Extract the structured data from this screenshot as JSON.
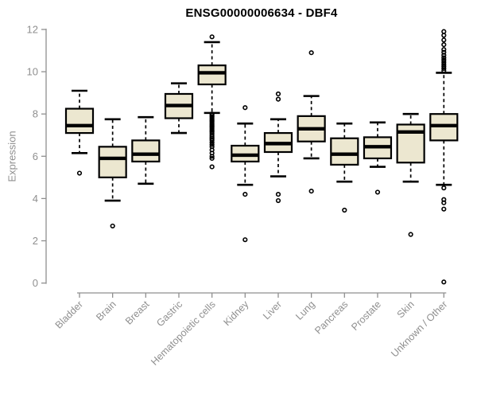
{
  "title": "ENSG00000006634 - DBF4",
  "colors": {
    "background": "#ffffff",
    "box_fill": "#ece7d0",
    "box_stroke": "#000000",
    "median": "#000000",
    "whisker": "#000000",
    "outlier": "#000000",
    "axis": "#8f8f8f",
    "tick_text": "#8f8f8f",
    "title_text": "#000000"
  },
  "chart_data": {
    "type": "box",
    "title": "ENSG00000006634 - DBF4",
    "ylabel": "Expression",
    "xlabel": "",
    "ylim": [
      0,
      12
    ],
    "yticks": [
      0,
      2,
      4,
      6,
      8,
      10,
      12
    ],
    "grid": false,
    "legend": "none",
    "whisker_style": "dashed",
    "x_label_rotation_deg": 45,
    "categories": [
      "Bladder",
      "Brain",
      "Breast",
      "Gastric",
      "Hematopoietic cells",
      "Kidney",
      "Liver",
      "Lung",
      "Pancreas",
      "Prostate",
      "Skin",
      "Unknown / Other"
    ],
    "boxes": [
      {
        "name": "Bladder",
        "low": 6.15,
        "q1": 7.1,
        "median": 7.45,
        "q3": 8.25,
        "high": 9.1,
        "outliers": [
          5.2
        ]
      },
      {
        "name": "Brain",
        "low": 3.9,
        "q1": 5.0,
        "median": 5.9,
        "q3": 6.45,
        "high": 7.75,
        "outliers": [
          2.7
        ]
      },
      {
        "name": "Breast",
        "low": 4.7,
        "q1": 5.75,
        "median": 6.1,
        "q3": 6.75,
        "high": 7.85,
        "outliers": []
      },
      {
        "name": "Gastric",
        "low": 7.1,
        "q1": 7.8,
        "median": 8.4,
        "q3": 8.95,
        "high": 9.45,
        "outliers": []
      },
      {
        "name": "Hematopoietic cells",
        "low": 8.05,
        "q1": 9.4,
        "median": 9.95,
        "q3": 10.3,
        "high": 11.4,
        "outliers": [
          11.65,
          8.0,
          7.93,
          7.86,
          7.79,
          7.72,
          7.65,
          7.58,
          7.51,
          7.44,
          7.37,
          7.3,
          7.23,
          7.16,
          7.09,
          7.0,
          6.92,
          6.84,
          6.76,
          6.65,
          6.55,
          6.45,
          6.3,
          6.15,
          6.0,
          5.9,
          5.5
        ]
      },
      {
        "name": "Kidney",
        "low": 4.65,
        "q1": 5.75,
        "median": 6.05,
        "q3": 6.5,
        "high": 7.55,
        "outliers": [
          8.3,
          4.2,
          2.05
        ]
      },
      {
        "name": "Liver",
        "low": 5.05,
        "q1": 6.2,
        "median": 6.6,
        "q3": 7.1,
        "high": 7.75,
        "outliers": [
          8.95,
          8.7,
          4.2,
          3.9
        ]
      },
      {
        "name": "Lung",
        "low": 5.9,
        "q1": 6.7,
        "median": 7.3,
        "q3": 7.9,
        "high": 8.85,
        "outliers": [
          10.9,
          4.35
        ]
      },
      {
        "name": "Pancreas",
        "low": 4.8,
        "q1": 5.6,
        "median": 6.1,
        "q3": 6.85,
        "high": 7.55,
        "outliers": [
          3.45
        ]
      },
      {
        "name": "Prostate",
        "low": 5.5,
        "q1": 5.9,
        "median": 6.45,
        "q3": 6.9,
        "high": 7.6,
        "outliers": [
          4.3
        ]
      },
      {
        "name": "Skin",
        "low": 4.8,
        "q1": 5.7,
        "median": 7.15,
        "q3": 7.5,
        "high": 8.0,
        "outliers": [
          2.3
        ]
      },
      {
        "name": "Unknown / Other",
        "low": 4.65,
        "q1": 6.75,
        "median": 7.45,
        "q3": 8.0,
        "high": 9.95,
        "outliers": [
          11.9,
          11.72,
          11.5,
          11.28,
          11.05,
          10.92,
          10.78,
          10.66,
          10.55,
          10.45,
          10.35,
          10.25,
          10.15,
          10.05,
          4.5,
          3.95,
          3.8,
          3.5,
          0.05
        ]
      }
    ]
  }
}
